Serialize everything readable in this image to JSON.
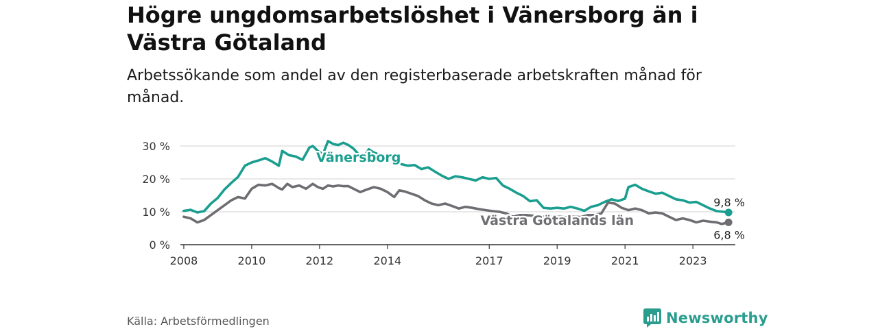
{
  "title": "Högre ungdomsarbetslöshet i Vänersborg än i Västra Götaland",
  "subtitle": "Arbetssökande som andel av den registerbaserade arbetskraften månad för månad.",
  "source": "Källa: Arbetsförmedlingen",
  "brand": {
    "name": "Newsworthy",
    "icon": "newsworthy-logo-icon",
    "color": "#2a9d8f"
  },
  "chart_data": {
    "type": "line",
    "title": "Högre ungdomsarbetslöshet i Vänersborg än i Västra Götaland",
    "xlabel": "",
    "ylabel": "",
    "xlim": [
      2007.9,
      2024.25
    ],
    "ylim": [
      0,
      30
    ],
    "grid": true,
    "x_ticks": [
      2008,
      2010,
      2012,
      2014,
      2017,
      2019,
      2021,
      2023
    ],
    "x_tick_labels": [
      "2008",
      "2010",
      "2012",
      "2014",
      "2017",
      "2019",
      "2021",
      "2023"
    ],
    "y_ticks": [
      0,
      10,
      20,
      30
    ],
    "y_tick_labels": [
      "0 %",
      "10 %",
      "20 %",
      "30 %"
    ],
    "series": [
      {
        "name": "Vänersborg",
        "color": "#1a9e8f",
        "end_label": "9,8 %",
        "points": [
          [
            2008.0,
            10.3
          ],
          [
            2008.2,
            10.6
          ],
          [
            2008.4,
            9.8
          ],
          [
            2008.6,
            10.2
          ],
          [
            2008.8,
            12.5
          ],
          [
            2009.0,
            14.2
          ],
          [
            2009.2,
            16.8
          ],
          [
            2009.4,
            18.8
          ],
          [
            2009.6,
            20.6
          ],
          [
            2009.8,
            24.0
          ],
          [
            2010.0,
            25.0
          ],
          [
            2010.2,
            25.6
          ],
          [
            2010.4,
            26.3
          ],
          [
            2010.6,
            25.3
          ],
          [
            2010.8,
            24.0
          ],
          [
            2010.9,
            28.5
          ],
          [
            2011.1,
            27.2
          ],
          [
            2011.3,
            26.8
          ],
          [
            2011.5,
            25.8
          ],
          [
            2011.7,
            29.5
          ],
          [
            2011.8,
            30.0
          ],
          [
            2011.95,
            28.5
          ],
          [
            2012.1,
            27.5
          ],
          [
            2012.25,
            31.5
          ],
          [
            2012.4,
            30.6
          ],
          [
            2012.55,
            30.3
          ],
          [
            2012.7,
            31.0
          ],
          [
            2012.85,
            30.3
          ],
          [
            2013.0,
            29.2
          ],
          [
            2013.15,
            27.5
          ],
          [
            2013.3,
            26.5
          ],
          [
            2013.45,
            29.0
          ],
          [
            2013.6,
            28.0
          ],
          [
            2013.8,
            27.2
          ],
          [
            2014.0,
            26.2
          ],
          [
            2014.2,
            26.8
          ],
          [
            2014.4,
            24.5
          ],
          [
            2014.6,
            24.0
          ],
          [
            2014.8,
            24.2
          ],
          [
            2015.0,
            23.0
          ],
          [
            2015.2,
            23.5
          ],
          [
            2015.4,
            22.2
          ],
          [
            2015.6,
            21.0
          ],
          [
            2015.8,
            20.0
          ],
          [
            2016.0,
            20.8
          ],
          [
            2016.2,
            20.5
          ],
          [
            2016.4,
            20.0
          ],
          [
            2016.6,
            19.5
          ],
          [
            2016.8,
            20.5
          ],
          [
            2017.0,
            20.0
          ],
          [
            2017.2,
            20.3
          ],
          [
            2017.4,
            18.0
          ],
          [
            2017.6,
            17.0
          ],
          [
            2017.8,
            15.8
          ],
          [
            2018.0,
            14.8
          ],
          [
            2018.2,
            13.2
          ],
          [
            2018.4,
            13.5
          ],
          [
            2018.6,
            11.2
          ],
          [
            2018.8,
            11.0
          ],
          [
            2019.0,
            11.2
          ],
          [
            2019.2,
            11.0
          ],
          [
            2019.4,
            11.5
          ],
          [
            2019.6,
            11.0
          ],
          [
            2019.8,
            10.3
          ],
          [
            2020.0,
            11.5
          ],
          [
            2020.2,
            12.0
          ],
          [
            2020.4,
            13.0
          ],
          [
            2020.6,
            13.8
          ],
          [
            2020.8,
            13.3
          ],
          [
            2021.0,
            14.0
          ],
          [
            2021.1,
            17.5
          ],
          [
            2021.3,
            18.2
          ],
          [
            2021.5,
            17.0
          ],
          [
            2021.7,
            16.2
          ],
          [
            2021.9,
            15.5
          ],
          [
            2022.1,
            15.8
          ],
          [
            2022.3,
            14.8
          ],
          [
            2022.5,
            13.8
          ],
          [
            2022.7,
            13.5
          ],
          [
            2022.9,
            12.8
          ],
          [
            2023.1,
            13.0
          ],
          [
            2023.3,
            12.0
          ],
          [
            2023.5,
            11.0
          ],
          [
            2023.7,
            10.2
          ],
          [
            2023.9,
            10.0
          ],
          [
            2024.05,
            9.8
          ]
        ]
      },
      {
        "name": "Västra Götalands län",
        "color": "#6e6d72",
        "end_label": "6,8 %",
        "points": [
          [
            2008.0,
            8.5
          ],
          [
            2008.2,
            8.0
          ],
          [
            2008.4,
            6.8
          ],
          [
            2008.6,
            7.5
          ],
          [
            2008.8,
            9.0
          ],
          [
            2009.0,
            10.5
          ],
          [
            2009.2,
            12.0
          ],
          [
            2009.4,
            13.5
          ],
          [
            2009.6,
            14.5
          ],
          [
            2009.8,
            14.0
          ],
          [
            2010.0,
            17.0
          ],
          [
            2010.2,
            18.2
          ],
          [
            2010.4,
            18.0
          ],
          [
            2010.6,
            18.5
          ],
          [
            2010.8,
            17.2
          ],
          [
            2010.9,
            16.8
          ],
          [
            2011.05,
            18.5
          ],
          [
            2011.2,
            17.5
          ],
          [
            2011.4,
            18.0
          ],
          [
            2011.6,
            17.0
          ],
          [
            2011.8,
            18.5
          ],
          [
            2011.95,
            17.5
          ],
          [
            2012.1,
            17.0
          ],
          [
            2012.25,
            18.0
          ],
          [
            2012.4,
            17.7
          ],
          [
            2012.55,
            18.0
          ],
          [
            2012.7,
            17.8
          ],
          [
            2012.85,
            17.8
          ],
          [
            2013.0,
            17.0
          ],
          [
            2013.2,
            16.0
          ],
          [
            2013.4,
            16.8
          ],
          [
            2013.6,
            17.5
          ],
          [
            2013.8,
            17.0
          ],
          [
            2014.0,
            16.0
          ],
          [
            2014.2,
            14.5
          ],
          [
            2014.35,
            16.5
          ],
          [
            2014.5,
            16.2
          ],
          [
            2014.7,
            15.5
          ],
          [
            2014.9,
            14.8
          ],
          [
            2015.1,
            13.5
          ],
          [
            2015.3,
            12.5
          ],
          [
            2015.5,
            12.0
          ],
          [
            2015.7,
            12.5
          ],
          [
            2015.9,
            11.8
          ],
          [
            2016.1,
            11.0
          ],
          [
            2016.3,
            11.5
          ],
          [
            2016.5,
            11.2
          ],
          [
            2016.7,
            10.8
          ],
          [
            2016.9,
            10.5
          ],
          [
            2017.1,
            10.2
          ],
          [
            2017.3,
            10.0
          ],
          [
            2017.5,
            9.5
          ],
          [
            2017.7,
            8.5
          ],
          [
            2017.9,
            9.0
          ],
          [
            2018.1,
            9.0
          ],
          [
            2018.3,
            8.8
          ],
          [
            2018.5,
            8.5
          ],
          [
            2018.7,
            8.6
          ],
          [
            2018.9,
            8.4
          ],
          [
            2019.1,
            8.5
          ],
          [
            2019.3,
            8.3
          ],
          [
            2019.5,
            8.5
          ],
          [
            2019.7,
            8.4
          ],
          [
            2019.9,
            9.0
          ],
          [
            2020.1,
            9.0
          ],
          [
            2020.3,
            9.5
          ],
          [
            2020.5,
            12.8
          ],
          [
            2020.7,
            12.5
          ],
          [
            2020.9,
            11.2
          ],
          [
            2021.1,
            10.5
          ],
          [
            2021.3,
            11.0
          ],
          [
            2021.5,
            10.5
          ],
          [
            2021.7,
            9.5
          ],
          [
            2021.9,
            9.8
          ],
          [
            2022.1,
            9.5
          ],
          [
            2022.3,
            8.5
          ],
          [
            2022.5,
            7.5
          ],
          [
            2022.7,
            8.0
          ],
          [
            2022.9,
            7.5
          ],
          [
            2023.1,
            6.8
          ],
          [
            2023.3,
            7.3
          ],
          [
            2023.5,
            7.0
          ],
          [
            2023.7,
            6.8
          ],
          [
            2023.85,
            6.3
          ],
          [
            2024.05,
            6.8
          ]
        ]
      }
    ]
  }
}
